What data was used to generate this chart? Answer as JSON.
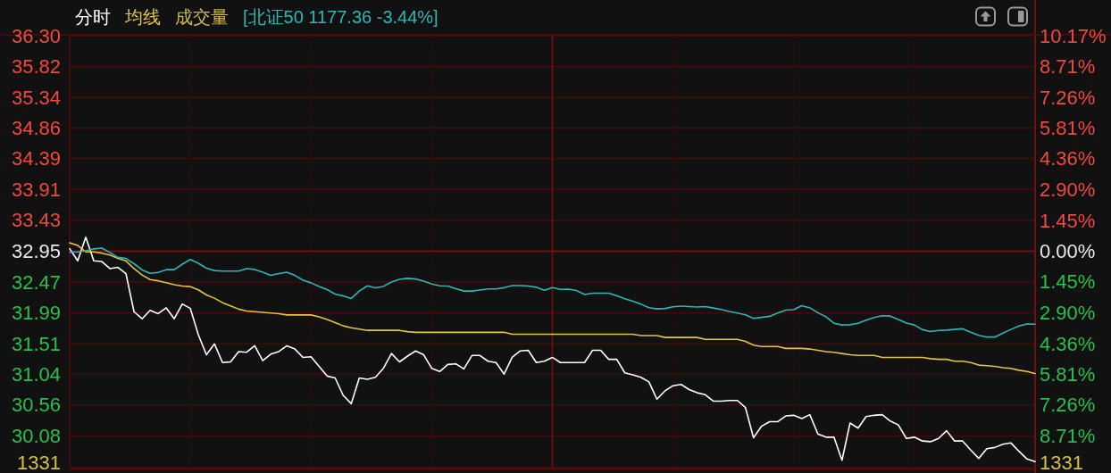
{
  "chart_data": {
    "type": "line",
    "categories": [
      null,
      null,
      null,
      null,
      null,
      null,
      null,
      null,
      null,
      null,
      null,
      null,
      null,
      null,
      null,
      null,
      null,
      null,
      null,
      null,
      null,
      null,
      null,
      null,
      null,
      null,
      null,
      null,
      null,
      null,
      null,
      null,
      null,
      null,
      null,
      null,
      null,
      null,
      null,
      null,
      null,
      null,
      null,
      null,
      null,
      null,
      null,
      null,
      null,
      null,
      null,
      null,
      null,
      null,
      null,
      null,
      null,
      null,
      null,
      null,
      null,
      null,
      null,
      null,
      null,
      null,
      null,
      null,
      null,
      null,
      null,
      null,
      null,
      null,
      null,
      null,
      null,
      null,
      null,
      null,
      null,
      null,
      null,
      null,
      null,
      null,
      null,
      null,
      null,
      null,
      null,
      null,
      null,
      null,
      null,
      null,
      null,
      null,
      null,
      null,
      null,
      null,
      null,
      null,
      null,
      null,
      null,
      null,
      null,
      null,
      null,
      null,
      null,
      null,
      null,
      null,
      null,
      null,
      null,
      null,
      null
    ],
    "series": [
      {
        "name": "分时",
        "color": "#ffffff",
        "values": [
          32.99,
          32.8,
          33.17,
          32.8,
          32.79,
          32.68,
          32.7,
          32.6,
          32.01,
          31.9,
          32.03,
          31.98,
          32.07,
          31.9,
          32.13,
          32.06,
          31.65,
          31.34,
          31.51,
          31.22,
          31.23,
          31.39,
          31.38,
          31.48,
          31.25,
          31.35,
          31.39,
          31.48,
          31.43,
          31.3,
          31.31,
          31.16,
          31.01,
          30.98,
          30.71,
          30.58,
          30.98,
          30.96,
          30.99,
          31.13,
          31.36,
          31.23,
          31.32,
          31.4,
          31.34,
          31.13,
          31.08,
          31.19,
          31.2,
          31.12,
          31.33,
          31.33,
          31.24,
          31.22,
          31.04,
          31.3,
          31.4,
          31.41,
          31.22,
          31.24,
          31.3,
          31.22,
          31.22,
          31.22,
          31.22,
          31.41,
          31.41,
          31.27,
          31.27,
          31.06,
          31.03,
          30.99,
          30.92,
          30.65,
          30.78,
          30.86,
          30.88,
          30.8,
          30.75,
          30.72,
          30.62,
          30.62,
          30.63,
          30.63,
          30.52,
          30.05,
          30.23,
          30.3,
          30.3,
          30.39,
          30.4,
          30.35,
          30.41,
          30.11,
          30.06,
          30.06,
          29.7,
          30.28,
          30.2,
          30.38,
          30.4,
          30.41,
          30.31,
          30.25,
          30.04,
          30.06,
          30.0,
          29.99,
          30.04,
          30.16,
          30.0,
          30.0,
          29.86,
          29.73,
          29.88,
          29.9,
          29.95,
          29.97,
          29.84,
          29.72,
          29.68
        ]
      },
      {
        "name": "均线",
        "color": "#e3c443",
        "values": [
          33.08,
          33.04,
          32.94,
          32.94,
          32.92,
          32.89,
          32.84,
          32.8,
          32.68,
          32.58,
          32.51,
          32.49,
          32.46,
          32.43,
          32.41,
          32.4,
          32.35,
          32.27,
          32.22,
          32.15,
          32.1,
          32.05,
          32.02,
          32.01,
          32.0,
          31.99,
          31.98,
          31.96,
          31.96,
          31.96,
          31.96,
          31.93,
          31.89,
          31.84,
          31.79,
          31.76,
          31.74,
          31.72,
          31.72,
          31.72,
          31.72,
          31.72,
          31.7,
          31.69,
          31.69,
          31.69,
          31.69,
          31.69,
          31.69,
          31.69,
          31.69,
          31.69,
          31.69,
          31.69,
          31.69,
          31.66,
          31.66,
          31.66,
          31.66,
          31.66,
          31.66,
          31.66,
          31.66,
          31.66,
          31.66,
          31.66,
          31.66,
          31.66,
          31.66,
          31.66,
          31.66,
          31.64,
          31.64,
          31.64,
          31.61,
          31.61,
          31.61,
          31.61,
          31.61,
          31.58,
          31.58,
          31.58,
          31.58,
          31.58,
          31.55,
          31.49,
          31.47,
          31.47,
          31.47,
          31.44,
          31.44,
          31.44,
          31.43,
          31.41,
          31.39,
          31.38,
          31.36,
          31.34,
          31.33,
          31.33,
          31.33,
          31.3,
          31.3,
          31.3,
          31.3,
          31.3,
          31.3,
          31.28,
          31.27,
          31.27,
          31.24,
          31.24,
          31.22,
          31.18,
          31.17,
          31.16,
          31.14,
          31.13,
          31.1,
          31.08,
          31.05
        ]
      },
      {
        "name": "[北证50 1177.36 -3.44%]",
        "color": "#2fb6b8",
        "axis": "y2",
        "values": [
          -0.05,
          -0.03,
          0.02,
          0.11,
          0.15,
          -0.06,
          -0.29,
          -0.34,
          -0.59,
          -0.88,
          -1.04,
          -1.0,
          -0.87,
          -0.87,
          -0.61,
          -0.39,
          -0.57,
          -0.8,
          -0.91,
          -0.94,
          -0.94,
          -0.94,
          -0.82,
          -0.86,
          -0.99,
          -1.14,
          -1.05,
          -0.99,
          -1.14,
          -1.37,
          -1.49,
          -1.66,
          -1.81,
          -2.02,
          -2.11,
          -2.23,
          -1.88,
          -1.63,
          -1.73,
          -1.66,
          -1.45,
          -1.33,
          -1.28,
          -1.31,
          -1.41,
          -1.55,
          -1.63,
          -1.64,
          -1.77,
          -1.88,
          -1.88,
          -1.83,
          -1.78,
          -1.78,
          -1.72,
          -1.62,
          -1.62,
          -1.64,
          -1.7,
          -1.84,
          -1.72,
          -1.8,
          -1.79,
          -1.85,
          -2.04,
          -1.98,
          -1.98,
          -1.98,
          -2.1,
          -2.24,
          -2.36,
          -2.5,
          -2.66,
          -2.72,
          -2.7,
          -2.62,
          -2.59,
          -2.61,
          -2.63,
          -2.61,
          -2.68,
          -2.75,
          -2.84,
          -2.92,
          -3.0,
          -3.17,
          -3.12,
          -3.07,
          -2.92,
          -2.78,
          -2.76,
          -2.57,
          -2.67,
          -2.9,
          -3.09,
          -3.4,
          -3.48,
          -3.47,
          -3.4,
          -3.25,
          -3.13,
          -3.04,
          -3.06,
          -3.22,
          -3.39,
          -3.48,
          -3.7,
          -3.79,
          -3.74,
          -3.72,
          -3.69,
          -3.66,
          -3.82,
          -3.97,
          -4.05,
          -4.05,
          -3.86,
          -3.69,
          -3.53,
          -3.43,
          -3.44
        ]
      }
    ],
    "ylim": [
      29.6,
      36.3
    ],
    "yticks": [
      {
        "value": 36.3,
        "label": "36.30"
      },
      35.82,
      35.34,
      34.86,
      34.39,
      33.91,
      33.43,
      32.95,
      32.47,
      31.99,
      31.51,
      31.04,
      30.56,
      30.08
    ],
    "y2lim": [
      -10.17,
      10.17
    ],
    "y2ticks": [
      {
        "value": 10.17,
        "label": "10.17%"
      },
      {
        "value": 8.71,
        "label": "8.71%"
      },
      {
        "value": 7.26,
        "label": "7.26%"
      },
      {
        "value": 5.81,
        "label": "5.81%"
      },
      {
        "value": 4.36,
        "label": "4.36%"
      },
      {
        "value": 2.9,
        "label": "2.90%"
      },
      {
        "value": 1.45,
        "label": "1.45%"
      },
      {
        "value": 0,
        "label": "0.00%"
      },
      {
        "value": -1.45,
        "label": "1.45%"
      },
      {
        "value": -2.9,
        "label": "2.90%"
      },
      {
        "value": -4.36,
        "label": "4.36%"
      },
      {
        "value": -5.81,
        "label": "5.81%"
      },
      {
        "value": -7.26,
        "label": "7.26%"
      },
      {
        "value": -8.71,
        "label": "8.71%"
      }
    ],
    "ref_lines": [
      {
        "axis": "y",
        "value": 32.95
      }
    ],
    "annotations": [
      "成交量",
      "1331",
      "1331"
    ],
    "grid": true,
    "legend": "top left"
  }
}
